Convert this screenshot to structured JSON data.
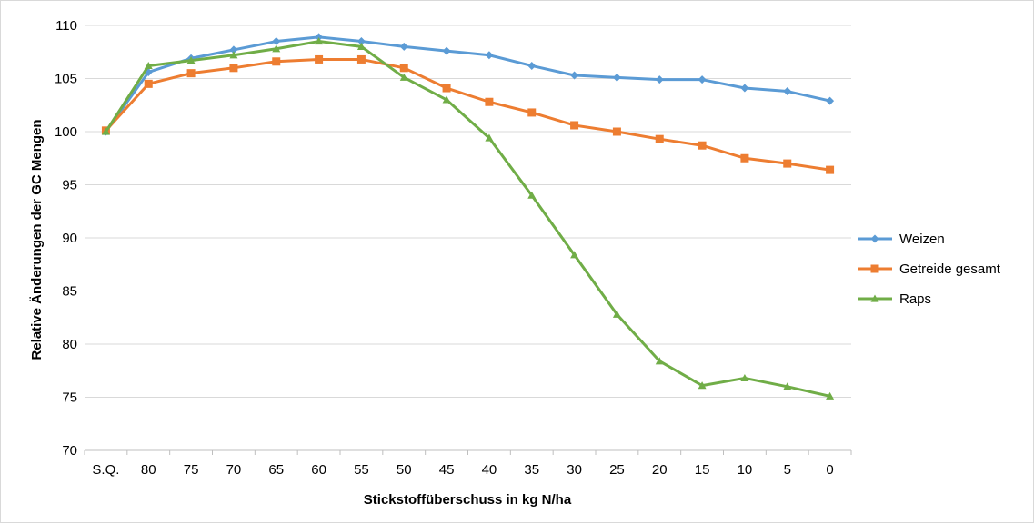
{
  "chart_data": {
    "type": "line",
    "title": "",
    "xlabel": "Stickstoffüberschuss in kg N/ha",
    "ylabel": "Relative Änderungen der GC Mengen",
    "categories": [
      "S.Q.",
      "80",
      "75",
      "70",
      "65",
      "60",
      "55",
      "50",
      "45",
      "40",
      "35",
      "30",
      "25",
      "20",
      "15",
      "10",
      "5",
      "0"
    ],
    "ylim": [
      70,
      110
    ],
    "yticks": [
      "70",
      "75",
      "80",
      "85",
      "90",
      "95",
      "100",
      "105",
      "110"
    ],
    "grid": "horizontal",
    "legend_position": "right",
    "series": [
      {
        "name": "Weizen",
        "color": "#5b9bd5",
        "marker": "diamond",
        "values": [
          100.0,
          105.6,
          106.9,
          107.7,
          108.5,
          108.9,
          108.5,
          108.0,
          107.6,
          107.2,
          106.2,
          105.3,
          105.1,
          104.9,
          104.9,
          104.1,
          103.8,
          102.9
        ]
      },
      {
        "name": "Getreide gesamt",
        "color": "#ed7d31",
        "marker": "square",
        "values": [
          100.1,
          104.5,
          105.5,
          106.0,
          106.6,
          106.8,
          106.8,
          106.0,
          104.1,
          102.8,
          101.8,
          100.6,
          100.0,
          99.3,
          98.7,
          97.5,
          97.0,
          96.4
        ]
      },
      {
        "name": "Raps",
        "color": "#70ad47",
        "marker": "triangle",
        "values": [
          100.0,
          106.2,
          106.7,
          107.2,
          107.8,
          108.5,
          108.0,
          105.1,
          103.0,
          99.4,
          94.0,
          88.4,
          82.8,
          78.4,
          76.1,
          76.8,
          76.0,
          75.1
        ]
      }
    ]
  }
}
